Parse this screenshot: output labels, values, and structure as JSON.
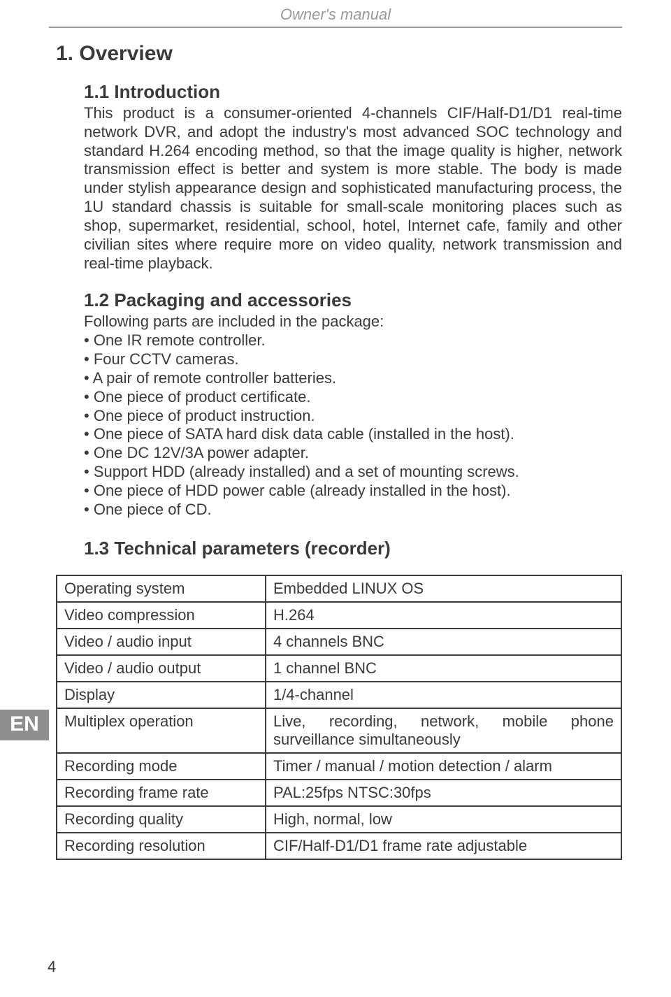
{
  "header": {
    "title": "Owner's manual"
  },
  "lang_tab": "EN",
  "page_number": "4",
  "h1": "1. Overview",
  "section1": {
    "heading": "1.1 Introduction",
    "paragraph": "This product is a consumer-oriented 4-channels CIF/Half-D1/D1 real-time network DVR, and adopt the industry's most advanced SOC technology and standard H.264 encoding method, so that the image quality is higher, network transmission effect is better and system is more stable. The body is made under stylish appearance design and sophisticated manufacturing process, the 1U standard chassis is suitable for small-scale monitoring places such as shop, supermarket, residential, school, hotel, Internet cafe, family and other civilian sites where require more on video quality, network transmission and real-time playback."
  },
  "section2": {
    "heading": "1.2 Packaging and accessories",
    "intro": "Following parts are included in the package:",
    "items": [
      "One IR remote controller.",
      "Four CCTV cameras.",
      "A pair of remote controller batteries.",
      "One piece of product certificate.",
      "One piece of product instruction.",
      "One piece of SATA hard disk data cable (installed in the host).",
      "One DC 12V/3A power adapter.",
      "Support HDD (already installed) and a set of mounting screws.",
      "One piece of HDD power cable (already installed in the host).",
      "One piece of CD."
    ]
  },
  "section3": {
    "heading": "1.3 Technical parameters (recorder)",
    "table": {
      "rows": [
        {
          "label": "Operating system",
          "value": "Embedded LINUX OS"
        },
        {
          "label": "Video compression",
          "value": "H.264"
        },
        {
          "label": "Video / audio input",
          "value": "4 channels BNC"
        },
        {
          "label": "Video / audio output",
          "value": "1 channel BNC"
        },
        {
          "label": "Display",
          "value": "1/4-channel"
        },
        {
          "label": "Multiplex operation",
          "value": "Live, recording, network, mobile phone surveillance simultaneously"
        },
        {
          "label": "Recording mode",
          "value": "Timer / manual / motion detection / alarm"
        },
        {
          "label": "Recording frame rate",
          "value": "PAL:25fps   NTSC:30fps"
        },
        {
          "label": "Recording quality",
          "value": "High, normal, low"
        },
        {
          "label": "Recording resolution",
          "value": "CIF/Half-D1/D1 frame rate adjustable"
        }
      ]
    }
  },
  "colors": {
    "text": "#3a3a3a",
    "muted": "#9a9a9a",
    "tab_bg": "#8f8f8f",
    "tab_fg": "#ffffff",
    "background": "#ffffff"
  }
}
